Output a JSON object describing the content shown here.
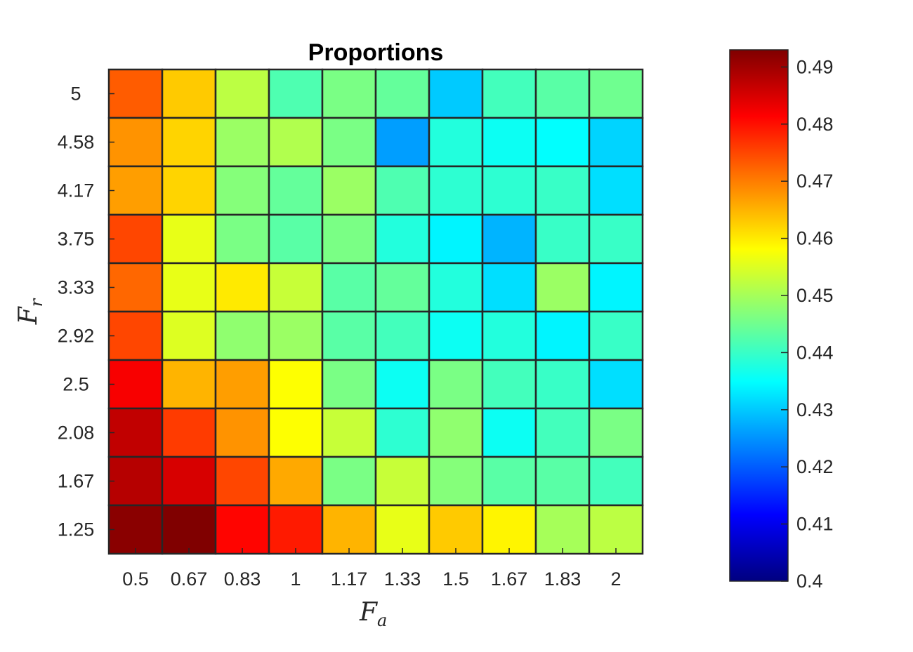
{
  "chart_data": {
    "type": "heatmap",
    "title": "Proportions",
    "xlabel": {
      "base": "F",
      "sub": "a"
    },
    "ylabel": {
      "base": "F",
      "sub": "r"
    },
    "x_ticks": [
      "0.5",
      "0.67",
      "0.83",
      "1",
      "1.17",
      "1.33",
      "1.5",
      "1.67",
      "1.83",
      "2"
    ],
    "y_ticks": [
      "5",
      "4.58",
      "4.17",
      "3.75",
      "3.33",
      "2.92",
      "2.5",
      "2.08",
      "1.67",
      "1.25"
    ],
    "colormap": "jet",
    "clim": [
      0.4,
      0.493
    ],
    "colorbar_ticks": [
      "0.49",
      "0.48",
      "0.47",
      "0.46",
      "0.45",
      "0.44",
      "0.43",
      "0.42",
      "0.41",
      "0.4"
    ],
    "colorbar_tick_values": [
      0.49,
      0.48,
      0.47,
      0.46,
      0.45,
      0.44,
      0.43,
      0.42,
      0.41,
      0.4
    ],
    "values": [
      [
        0.473,
        0.463,
        0.452,
        0.442,
        0.446,
        0.444,
        0.43,
        0.441,
        0.443,
        0.445
      ],
      [
        0.468,
        0.462,
        0.449,
        0.451,
        0.446,
        0.426,
        0.438,
        0.436,
        0.435,
        0.431
      ],
      [
        0.467,
        0.462,
        0.447,
        0.444,
        0.449,
        0.442,
        0.439,
        0.439,
        0.44,
        0.432
      ],
      [
        0.475,
        0.456,
        0.446,
        0.443,
        0.446,
        0.438,
        0.434,
        0.428,
        0.44,
        0.44
      ],
      [
        0.472,
        0.456,
        0.46,
        0.453,
        0.443,
        0.444,
        0.438,
        0.432,
        0.449,
        0.434
      ],
      [
        0.475,
        0.455,
        0.448,
        0.449,
        0.443,
        0.441,
        0.436,
        0.438,
        0.434,
        0.44
      ],
      [
        0.482,
        0.465,
        0.467,
        0.458,
        0.446,
        0.436,
        0.446,
        0.441,
        0.44,
        0.432
      ],
      [
        0.487,
        0.476,
        0.468,
        0.458,
        0.453,
        0.439,
        0.448,
        0.436,
        0.441,
        0.446
      ],
      [
        0.488,
        0.485,
        0.475,
        0.466,
        0.446,
        0.453,
        0.447,
        0.443,
        0.443,
        0.441
      ],
      [
        0.492,
        0.493,
        0.481,
        0.479,
        0.465,
        0.456,
        0.463,
        0.459,
        0.45,
        0.452
      ]
    ]
  }
}
